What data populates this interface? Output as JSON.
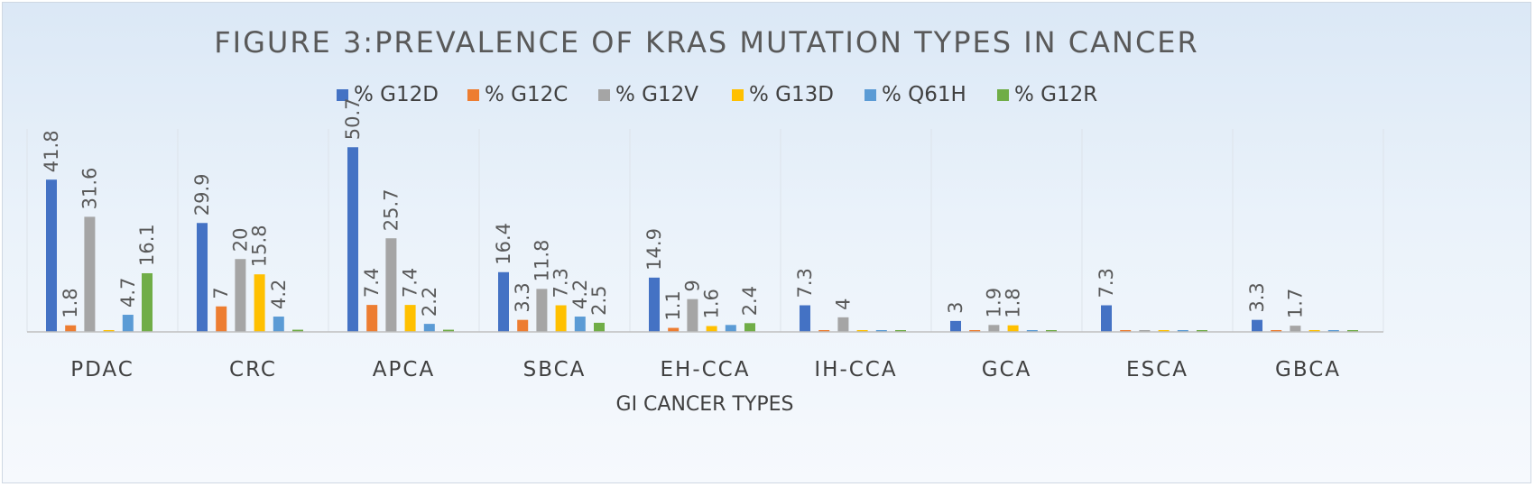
{
  "chart_data": {
    "type": "bar",
    "title": "FIGURE 3:PREVALENCE OF KRAS MUTATION TYPES IN  CANCER",
    "xlabel": "GI CANCER TYPES",
    "ylabel": "",
    "ylim": [
      0,
      52
    ],
    "grid": false,
    "legend_position": "top",
    "categories": [
      "PDAC",
      "CRC",
      "APCA",
      "SBCA",
      "EH-CCA",
      "IH-CCA",
      "GCA",
      "ESCA",
      "GBCA"
    ],
    "series": [
      {
        "name": "% G12D",
        "color": "#4472c4",
        "values": [
          41.8,
          29.9,
          50.7,
          16.4,
          14.9,
          7.3,
          3,
          7.3,
          3.3
        ],
        "labels": [
          "41.8",
          "29.9",
          "50.7",
          "16.4",
          "14.9",
          "7.3",
          "3",
          "7.3",
          "3.3"
        ]
      },
      {
        "name": "% G12C",
        "color": "#ed7d31",
        "values": [
          1.8,
          7,
          7.4,
          3.3,
          1.1,
          0.4,
          0.4,
          0.4,
          0.4
        ],
        "labels": [
          "1.8",
          "7",
          "7.4",
          "3.3",
          "1.1",
          "",
          "",
          "",
          ""
        ]
      },
      {
        "name": "% G12V",
        "color": "#a5a5a5",
        "values": [
          31.6,
          20,
          25.7,
          11.8,
          9,
          4,
          1.9,
          0.4,
          1.7
        ],
        "labels": [
          "31.6",
          "20",
          "25.7",
          "11.8",
          "9",
          "4",
          "1.9",
          "",
          "1.7"
        ]
      },
      {
        "name": "% G13D",
        "color": "#ffc000",
        "values": [
          0.4,
          15.8,
          7.4,
          7.3,
          1.6,
          0.4,
          1.8,
          0.4,
          0.4
        ],
        "labels": [
          "",
          "15.8",
          "7.4",
          "7.3",
          "1.6",
          "",
          "1.8",
          "",
          ""
        ]
      },
      {
        "name": "% Q61H",
        "color": "#5b9bd5",
        "values": [
          4.7,
          4.2,
          2.2,
          4.2,
          1.9,
          0.4,
          0.4,
          0.4,
          0.4
        ],
        "labels": [
          "4.7",
          "4.2",
          "2.2",
          "4.2",
          "",
          "",
          "",
          "",
          ""
        ]
      },
      {
        "name": "% G12R",
        "color": "#70ad47",
        "values": [
          16.1,
          0.6,
          0.6,
          2.5,
          2.4,
          0.4,
          0.4,
          0.4,
          0.4
        ],
        "labels": [
          "16.1",
          "",
          "",
          "2.5",
          "2.4",
          "",
          "",
          "",
          ""
        ]
      }
    ]
  }
}
